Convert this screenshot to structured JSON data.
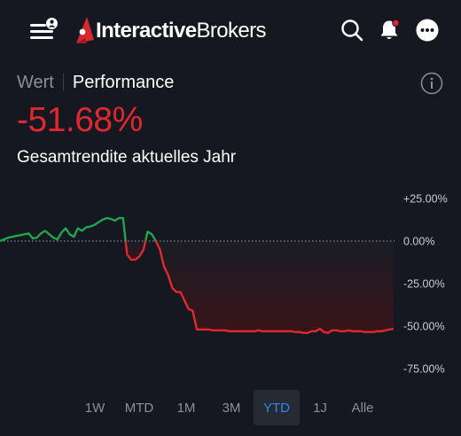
{
  "header": {
    "brand_bold": "Interactive",
    "brand_regular": "Brokers",
    "icons": [
      "menu-icon",
      "user-icon",
      "search-icon",
      "bell-icon",
      "more-icon"
    ],
    "notification_dot_color": "#e0282e"
  },
  "view_tabs": [
    {
      "label": "Wert",
      "active": false
    },
    {
      "label": "Performance",
      "active": true
    }
  ],
  "performance": {
    "value": "-51.68%",
    "label": "Gesamtrendite aktuelles Jahr",
    "color": "#e0282e"
  },
  "chart_data": {
    "type": "line",
    "y_ticks": [
      "+25.00%",
      "0.00%",
      "-25.00%",
      "-50.00%",
      "-75.00%"
    ],
    "y_tick_values": [
      25,
      0,
      -25,
      -50,
      -75
    ],
    "ylim": [
      -75,
      25
    ],
    "grid": false,
    "baseline": 0,
    "positive_color": "#1fa54b",
    "negative_color": "#e0282e",
    "values": [
      0,
      1,
      2,
      2.5,
      3,
      3.5,
      4,
      4.5,
      1.5,
      2,
      4.5,
      6,
      4,
      2,
      1,
      5,
      7.5,
      4,
      2.5,
      7.5,
      6,
      8,
      8.5,
      9.5,
      11,
      12.5,
      13.5,
      13,
      12,
      13.5,
      13.5,
      -8,
      -11,
      -11,
      -9,
      -5,
      5.5,
      4,
      0,
      -5,
      -15,
      -20,
      -27.5,
      -30,
      -30,
      -35,
      -40,
      -41,
      -52,
      -52,
      -52,
      -52,
      -52.5,
      -52.5,
      -52.5,
      -52.5,
      -53,
      -53,
      -53,
      -53,
      -53,
      -53,
      -53,
      -52.5,
      -53,
      -53,
      -53,
      -53,
      -53,
      -53,
      -53,
      -53,
      -53.5,
      -53.5,
      -54,
      -54,
      -53,
      -53,
      -51.5,
      -53.5,
      -54,
      -52.5,
      -52.5,
      -53,
      -53,
      -52.5,
      -53,
      -53,
      -53,
      -53.5,
      -53.5,
      -53.5,
      -53,
      -53,
      -52.5,
      -52,
      -51.68
    ]
  },
  "ranges": [
    {
      "label": "1W",
      "selected": false
    },
    {
      "label": "MTD",
      "selected": false
    },
    {
      "label": "1M",
      "selected": false
    },
    {
      "label": "3M",
      "selected": false
    },
    {
      "label": "YTD",
      "selected": true
    },
    {
      "label": "1J",
      "selected": false
    },
    {
      "label": "Alle",
      "selected": false
    }
  ]
}
